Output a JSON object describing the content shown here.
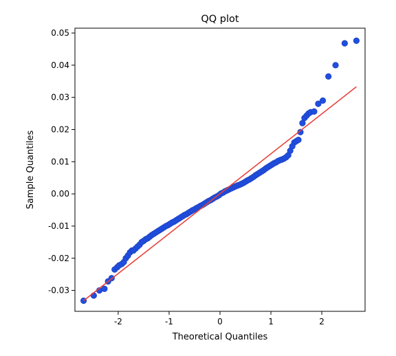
{
  "chart_data": {
    "type": "scatter",
    "title": "QQ plot",
    "xlabel": "Theoretical Quantiles",
    "ylabel": "Sample Quantiles",
    "xlim": [
      -2.85,
      2.85
    ],
    "ylim": [
      -0.0365,
      0.0515
    ],
    "x_ticks": [
      -2,
      -1,
      0,
      1,
      2
    ],
    "x_tick_labels": [
      "-2",
      "-1",
      "0",
      "1",
      "2"
    ],
    "y_ticks": [
      -0.03,
      -0.02,
      -0.01,
      0.0,
      0.01,
      0.02,
      0.03,
      0.04,
      0.05
    ],
    "y_tick_labels": [
      "-0.03",
      "-0.02",
      "-0.01",
      "0.00",
      "0.01",
      "0.02",
      "0.03",
      "0.04",
      "0.05"
    ],
    "grid": false,
    "series": [
      {
        "marker_face": "#1f4fe0",
        "marker_edge": "#1f3fbf",
        "x": [
          -2.68,
          -2.48,
          -2.37,
          -2.27,
          -2.2,
          -2.13,
          -2.07,
          -2.02,
          -1.98,
          -1.93,
          -1.89,
          -1.85,
          -1.81,
          -1.77,
          -1.73,
          -1.7,
          -1.66,
          -1.62,
          -1.58,
          -1.54,
          -1.5,
          -1.46,
          -1.42,
          -1.38,
          -1.34,
          -1.3,
          -1.26,
          -1.22,
          -1.18,
          -1.14,
          -1.1,
          -1.06,
          -1.02,
          -0.98,
          -0.94,
          -0.9,
          -0.86,
          -0.82,
          -0.78,
          -0.74,
          -0.7,
          -0.66,
          -0.62,
          -0.58,
          -0.54,
          -0.5,
          -0.46,
          -0.42,
          -0.38,
          -0.34,
          -0.3,
          -0.26,
          -0.22,
          -0.18,
          -0.14,
          -0.1,
          -0.06,
          -0.02,
          0.02,
          0.06,
          0.1,
          0.14,
          0.18,
          0.22,
          0.26,
          0.3,
          0.34,
          0.38,
          0.42,
          0.46,
          0.5,
          0.54,
          0.58,
          0.62,
          0.66,
          0.7,
          0.74,
          0.78,
          0.82,
          0.86,
          0.9,
          0.94,
          0.98,
          1.02,
          1.06,
          1.1,
          1.14,
          1.18,
          1.22,
          1.26,
          1.3,
          1.34,
          1.38,
          1.42,
          1.46,
          1.5,
          1.54,
          1.58,
          1.62,
          1.66,
          1.7,
          1.74,
          1.78,
          1.85,
          1.93,
          2.02,
          2.13,
          2.27,
          2.45,
          2.68
        ],
        "y": [
          -0.0332,
          -0.0316,
          -0.03,
          -0.0295,
          -0.0272,
          -0.0262,
          -0.0235,
          -0.0228,
          -0.0222,
          -0.0218,
          -0.0212,
          -0.02,
          -0.0192,
          -0.0182,
          -0.0176,
          -0.0176,
          -0.017,
          -0.0164,
          -0.0158,
          -0.015,
          -0.0146,
          -0.0141,
          -0.0138,
          -0.0133,
          -0.0128,
          -0.0124,
          -0.012,
          -0.0116,
          -0.0112,
          -0.0108,
          -0.0104,
          -0.01,
          -0.0097,
          -0.0093,
          -0.0089,
          -0.0086,
          -0.0082,
          -0.0078,
          -0.0074,
          -0.007,
          -0.0066,
          -0.0063,
          -0.0059,
          -0.0055,
          -0.0051,
          -0.0048,
          -0.0044,
          -0.0041,
          -0.0037,
          -0.0034,
          -0.003,
          -0.0026,
          -0.0022,
          -0.0019,
          -0.0015,
          -0.0011,
          -0.0008,
          -0.0004,
          0.0001,
          0.0004,
          0.0008,
          0.0011,
          0.0014,
          0.0017,
          0.002,
          0.0023,
          0.0026,
          0.0028,
          0.0031,
          0.0034,
          0.0038,
          0.0042,
          0.0045,
          0.0049,
          0.0053,
          0.0058,
          0.0062,
          0.0066,
          0.007,
          0.0074,
          0.0079,
          0.0083,
          0.0087,
          0.0091,
          0.0095,
          0.0098,
          0.0102,
          0.0105,
          0.0107,
          0.011,
          0.0114,
          0.012,
          0.0134,
          0.0148,
          0.016,
          0.0164,
          0.0168,
          0.0192,
          0.022,
          0.0236,
          0.0243,
          0.025,
          0.0254,
          0.0256,
          0.028,
          0.029,
          0.0365,
          0.04,
          0.0468,
          0.0476
        ]
      }
    ],
    "reference_line": {
      "color": "#e8413a",
      "x": [
        -2.68,
        2.68
      ],
      "y": [
        -0.0332,
        0.0333
      ]
    }
  }
}
